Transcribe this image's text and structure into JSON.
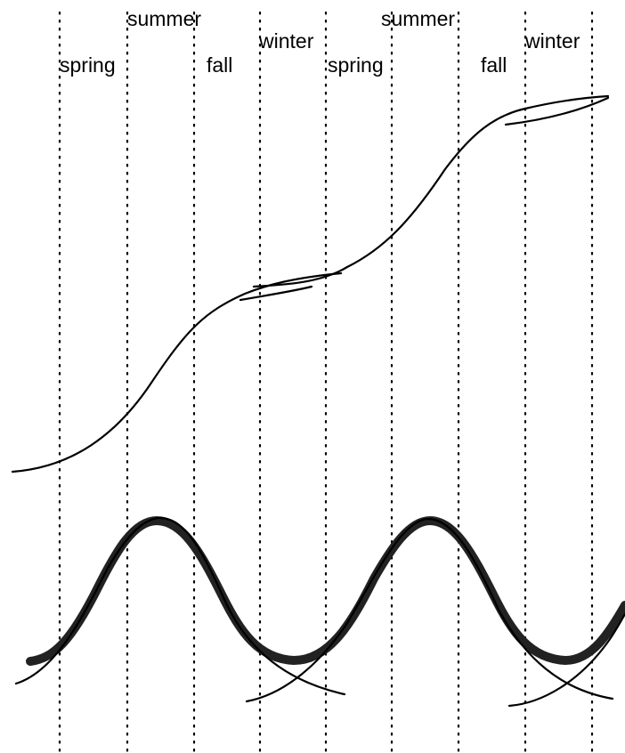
{
  "labels": {
    "spring_1": "spring",
    "summer_1": "summer",
    "fall_1": "fall",
    "winter_1": "winter",
    "spring_2": "spring",
    "summer_2": "summer",
    "fall_2": "fall",
    "winter_2": "winter"
  },
  "colors": {
    "ink": "#000000",
    "band": "#222222",
    "background": "#ffffff"
  }
}
